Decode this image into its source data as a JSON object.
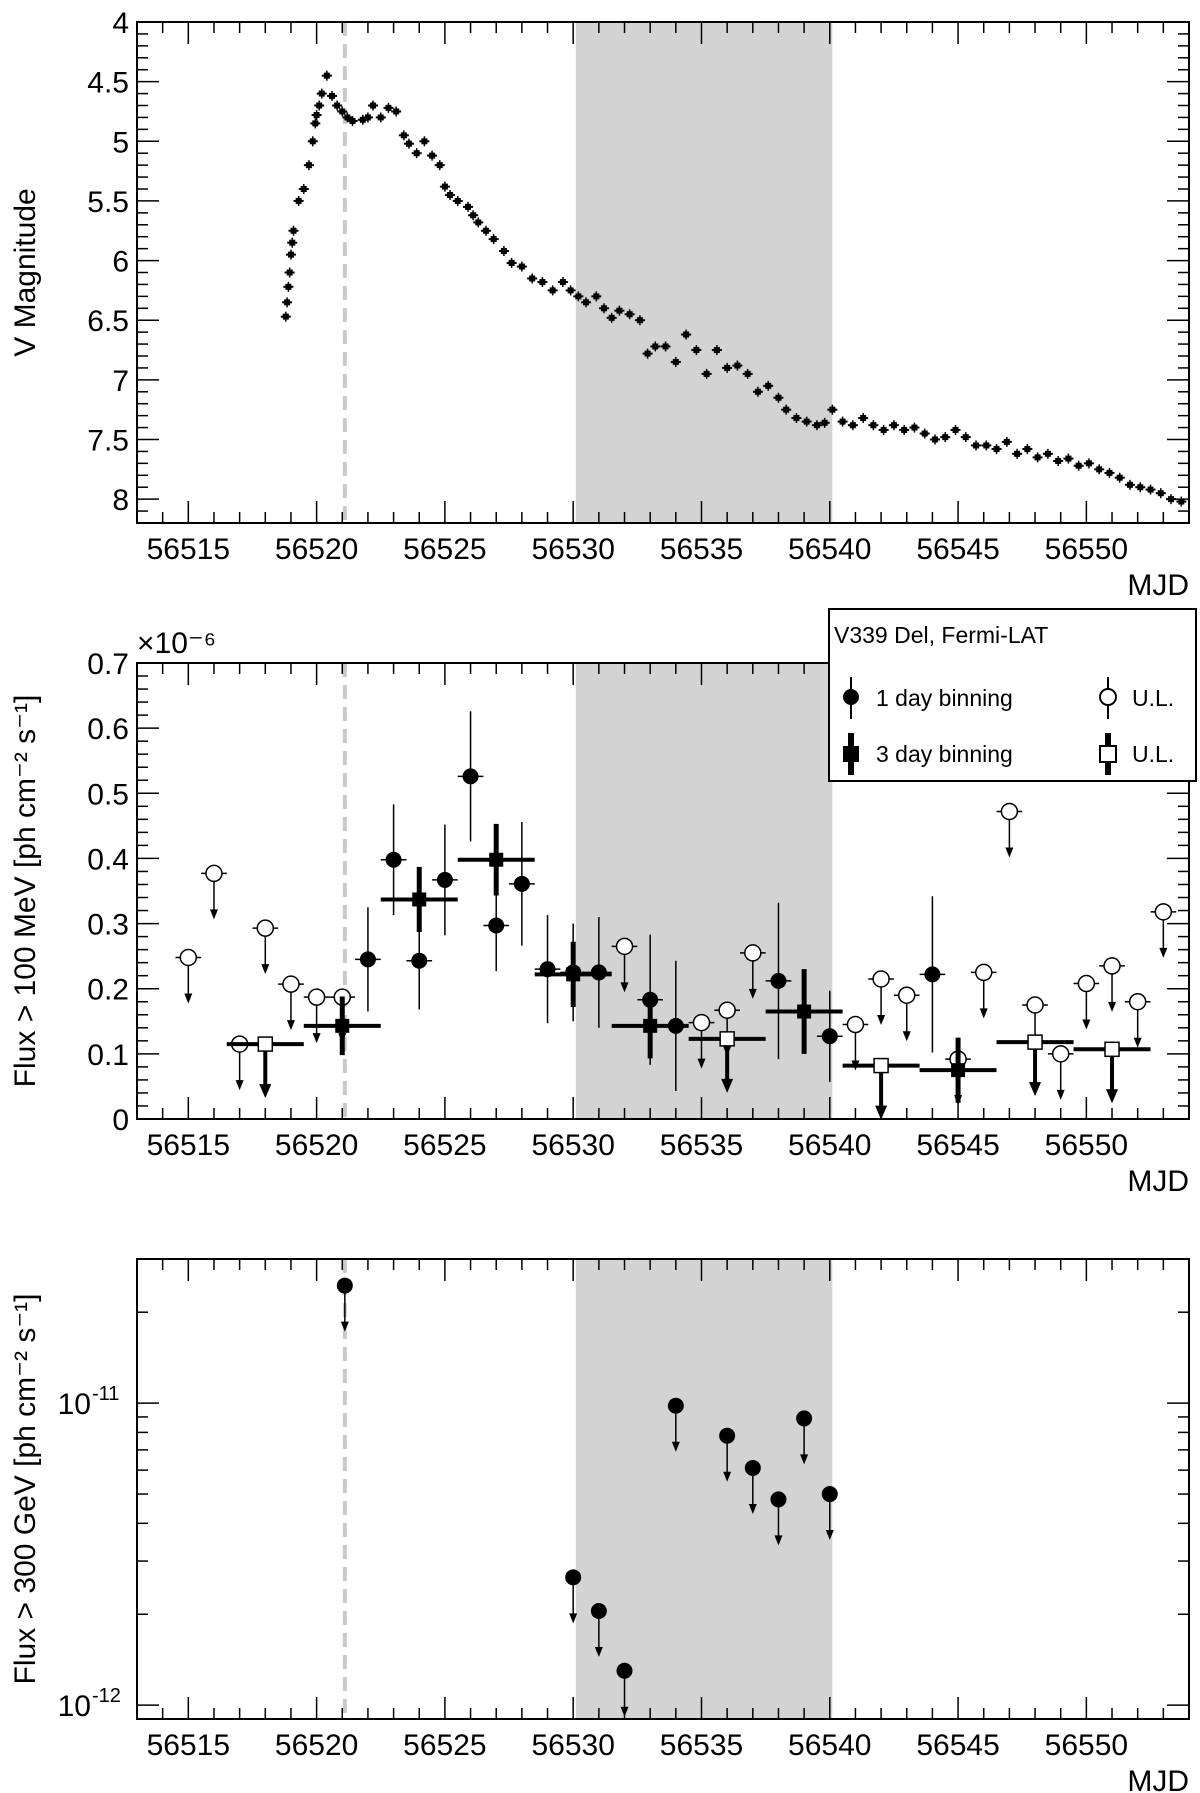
{
  "colors": {
    "shade": "#d3d3d3",
    "dashed_line": "#c9c9c9",
    "markers": "#000000"
  },
  "chart_data": [
    {
      "type": "scatter",
      "id": "panel-v-magnitude",
      "xlabel": "MJD",
      "ylabel": "V Magnitude",
      "xlim": [
        56513,
        56554
      ],
      "ylim": [
        8.2,
        4.0
      ],
      "y_inverted": true,
      "xticks": [
        "56515",
        "56520",
        "56525",
        "56530",
        "56535",
        "56540",
        "56545",
        "56550"
      ],
      "yticks": [
        "4",
        "4.5",
        "5",
        "5.5",
        "6",
        "6.5",
        "7",
        "7.5",
        "8"
      ],
      "shaded_region": [
        56530.1,
        56540.1
      ],
      "dashed_line_x": 56521.1,
      "series": [
        {
          "points": [
            [
              56518.8,
              6.47
            ],
            [
              56518.85,
              6.35
            ],
            [
              56518.9,
              6.22
            ],
            [
              56518.95,
              6.1
            ],
            [
              56519.0,
              5.95
            ],
            [
              56519.05,
              5.85
            ],
            [
              56519.1,
              5.75
            ],
            [
              56519.3,
              5.5
            ],
            [
              56519.5,
              5.4
            ],
            [
              56519.7,
              5.2
            ],
            [
              56519.85,
              5.0
            ],
            [
              56519.95,
              4.85
            ],
            [
              56520.0,
              4.78
            ],
            [
              56520.1,
              4.7
            ],
            [
              56520.2,
              4.6
            ],
            [
              56520.4,
              4.45
            ],
            [
              56520.6,
              4.62
            ],
            [
              56520.8,
              4.7
            ],
            [
              56521.0,
              4.75
            ],
            [
              56521.2,
              4.8
            ],
            [
              56521.4,
              4.83
            ],
            [
              56521.8,
              4.82
            ],
            [
              56522.0,
              4.8
            ],
            [
              56522.2,
              4.7
            ],
            [
              56522.5,
              4.8
            ],
            [
              56522.8,
              4.72
            ],
            [
              56523.1,
              4.75
            ],
            [
              56523.4,
              4.95
            ],
            [
              56523.6,
              5.02
            ],
            [
              56523.9,
              5.1
            ],
            [
              56524.2,
              5.0
            ],
            [
              56524.5,
              5.12
            ],
            [
              56524.8,
              5.2
            ],
            [
              56525.0,
              5.38
            ],
            [
              56525.2,
              5.45
            ],
            [
              56525.5,
              5.5
            ],
            [
              56525.9,
              5.55
            ],
            [
              56526.1,
              5.62
            ],
            [
              56526.3,
              5.68
            ],
            [
              56526.6,
              5.75
            ],
            [
              56526.9,
              5.82
            ],
            [
              56527.3,
              5.92
            ],
            [
              56527.6,
              6.02
            ],
            [
              56528.0,
              6.05
            ],
            [
              56528.4,
              6.15
            ],
            [
              56528.8,
              6.18
            ],
            [
              56529.2,
              6.25
            ],
            [
              56529.6,
              6.18
            ],
            [
              56529.9,
              6.25
            ],
            [
              56530.2,
              6.3
            ],
            [
              56530.5,
              6.35
            ],
            [
              56530.9,
              6.3
            ],
            [
              56531.2,
              6.4
            ],
            [
              56531.5,
              6.48
            ],
            [
              56531.8,
              6.42
            ],
            [
              56532.2,
              6.45
            ],
            [
              56532.6,
              6.5
            ],
            [
              56532.9,
              6.78
            ],
            [
              56533.2,
              6.72
            ],
            [
              56533.6,
              6.72
            ],
            [
              56534.0,
              6.85
            ],
            [
              56534.4,
              6.62
            ],
            [
              56534.8,
              6.75
            ],
            [
              56535.2,
              6.95
            ],
            [
              56535.6,
              6.75
            ],
            [
              56536.0,
              6.9
            ],
            [
              56536.4,
              6.88
            ],
            [
              56536.8,
              6.95
            ],
            [
              56537.2,
              7.1
            ],
            [
              56537.6,
              7.05
            ],
            [
              56538.0,
              7.15
            ],
            [
              56538.3,
              7.25
            ],
            [
              56538.7,
              7.32
            ],
            [
              56539.1,
              7.35
            ],
            [
              56539.5,
              7.38
            ],
            [
              56539.8,
              7.36
            ],
            [
              56540.1,
              7.25
            ],
            [
              56540.5,
              7.35
            ],
            [
              56540.9,
              7.38
            ],
            [
              56541.3,
              7.32
            ],
            [
              56541.7,
              7.38
            ],
            [
              56542.1,
              7.42
            ],
            [
              56542.5,
              7.38
            ],
            [
              56542.9,
              7.42
            ],
            [
              56543.3,
              7.4
            ],
            [
              56543.7,
              7.45
            ],
            [
              56544.1,
              7.5
            ],
            [
              56544.5,
              7.48
            ],
            [
              56544.9,
              7.42
            ],
            [
              56545.3,
              7.48
            ],
            [
              56545.7,
              7.55
            ],
            [
              56546.1,
              7.55
            ],
            [
              56546.5,
              7.58
            ],
            [
              56546.9,
              7.52
            ],
            [
              56547.3,
              7.62
            ],
            [
              56547.7,
              7.58
            ],
            [
              56548.1,
              7.65
            ],
            [
              56548.5,
              7.62
            ],
            [
              56548.9,
              7.68
            ],
            [
              56549.3,
              7.66
            ],
            [
              56549.7,
              7.72
            ],
            [
              56550.1,
              7.7
            ],
            [
              56550.5,
              7.75
            ],
            [
              56550.9,
              7.78
            ],
            [
              56551.3,
              7.82
            ],
            [
              56551.7,
              7.88
            ],
            [
              56552.1,
              7.9
            ],
            [
              56552.5,
              7.92
            ],
            [
              56552.9,
              7.95
            ],
            [
              56553.3,
              8.0
            ],
            [
              56553.7,
              8.02
            ]
          ]
        }
      ]
    },
    {
      "type": "scatter",
      "id": "panel-fermi-flux",
      "xlabel": "MJD",
      "ylabel": "Flux > 100 MeV [ph cm⁻² s⁻¹]",
      "y_exponent_label": "×10⁻⁶",
      "xlim": [
        56513,
        56554
      ],
      "ylim": [
        0,
        0.7
      ],
      "xticks": [
        "56515",
        "56520",
        "56525",
        "56530",
        "56535",
        "56540",
        "56545",
        "56550"
      ],
      "yticks": [
        "0",
        "0.1",
        "0.2",
        "0.3",
        "0.4",
        "0.5",
        "0.6",
        "0.7"
      ],
      "shaded_region": [
        56530.1,
        56540.1
      ],
      "dashed_line_x": 56521.1,
      "legend": {
        "title": "V339 Del, Fermi-LAT",
        "placement": "top-right",
        "entries": [
          "1 day binning",
          "U.L.",
          "3 day binning",
          "U.L."
        ]
      },
      "series": [
        {
          "name": "1 day binning",
          "points": [
            {
              "x": 56522,
              "y": 0.245,
              "err": 0.08
            },
            {
              "x": 56523,
              "y": 0.398,
              "err": 0.085
            },
            {
              "x": 56524,
              "y": 0.243,
              "err": 0.075
            },
            {
              "x": 56525,
              "y": 0.367,
              "err": 0.085
            },
            {
              "x": 56526,
              "y": 0.526,
              "err": 0.1
            },
            {
              "x": 56527,
              "y": 0.297,
              "err": 0.07
            },
            {
              "x": 56528,
              "y": 0.361,
              "err": 0.095
            },
            {
              "x": 56529,
              "y": 0.23,
              "err": 0.083
            },
            {
              "x": 56530,
              "y": 0.225,
              "err": 0.075
            },
            {
              "x": 56531,
              "y": 0.225,
              "err": 0.085
            },
            {
              "x": 56533,
              "y": 0.183,
              "err": 0.1
            },
            {
              "x": 56534,
              "y": 0.143,
              "err": 0.1
            },
            {
              "x": 56538,
              "y": 0.212,
              "err": 0.12
            },
            {
              "x": 56540,
              "y": 0.127,
              "err": 0.07
            },
            {
              "x": 56544,
              "y": 0.222,
              "err": 0.12
            }
          ]
        },
        {
          "name": "1 day binning U.L.",
          "points": [
            {
              "x": 56515,
              "y": 0.248
            },
            {
              "x": 56516,
              "y": 0.377
            },
            {
              "x": 56517,
              "y": 0.115
            },
            {
              "x": 56518,
              "y": 0.293
            },
            {
              "x": 56519,
              "y": 0.207
            },
            {
              "x": 56520,
              "y": 0.187
            },
            {
              "x": 56521,
              "y": 0.187
            },
            {
              "x": 56532,
              "y": 0.265
            },
            {
              "x": 56535,
              "y": 0.148
            },
            {
              "x": 56536,
              "y": 0.167
            },
            {
              "x": 56537,
              "y": 0.255
            },
            {
              "x": 56541,
              "y": 0.145
            },
            {
              "x": 56542,
              "y": 0.215
            },
            {
              "x": 56543,
              "y": 0.19
            },
            {
              "x": 56545,
              "y": 0.092
            },
            {
              "x": 56546,
              "y": 0.225
            },
            {
              "x": 56547,
              "y": 0.472
            },
            {
              "x": 56548,
              "y": 0.175
            },
            {
              "x": 56549,
              "y": 0.1
            },
            {
              "x": 56550,
              "y": 0.208
            },
            {
              "x": 56551,
              "y": 0.235
            },
            {
              "x": 56552,
              "y": 0.18
            },
            {
              "x": 56553,
              "y": 0.318
            }
          ]
        },
        {
          "name": "3 day binning",
          "points": [
            {
              "x": 56521,
              "y": 0.143,
              "err": 0.045
            },
            {
              "x": 56524,
              "y": 0.337,
              "err": 0.05
            },
            {
              "x": 56527,
              "y": 0.398,
              "err": 0.055
            },
            {
              "x": 56530,
              "y": 0.222,
              "err": 0.05
            },
            {
              "x": 56533,
              "y": 0.143,
              "err": 0.05
            },
            {
              "x": 56539,
              "y": 0.165,
              "err": 0.065
            },
            {
              "x": 56545,
              "y": 0.075,
              "err": 0.05
            }
          ]
        },
        {
          "name": "3 day binning U.L.",
          "points": [
            {
              "x": 56518,
              "y": 0.115
            },
            {
              "x": 56536,
              "y": 0.123
            },
            {
              "x": 56542,
              "y": 0.082
            },
            {
              "x": 56548,
              "y": 0.118
            },
            {
              "x": 56551,
              "y": 0.107
            }
          ]
        }
      ]
    },
    {
      "type": "scatter",
      "id": "panel-vhe-flux",
      "xlabel": "MJD",
      "ylabel": "Flux > 300 GeV [ph cm⁻² s⁻¹]",
      "y_scale": "log",
      "xlim": [
        56513,
        56554
      ],
      "ylim": [
        9e-13,
        3e-11
      ],
      "xticks": [
        "56515",
        "56520",
        "56525",
        "56530",
        "56535",
        "56540",
        "56545",
        "56550"
      ],
      "yticks": [
        {
          "label_base": "10",
          "label_exp": "-11",
          "value": 1e-11
        },
        {
          "label_base": "10",
          "label_exp": "-12",
          "value": 1e-12
        }
      ],
      "shaded_region": [
        56530.1,
        56540.1
      ],
      "dashed_line_x": 56521.1,
      "series": [
        {
          "points": [
            {
              "x": 56521.1,
              "y": 2.45e-11
            },
            {
              "x": 56530,
              "y": 2.65e-12
            },
            {
              "x": 56531,
              "y": 2.05e-12
            },
            {
              "x": 56532,
              "y": 1.3e-12
            },
            {
              "x": 56534,
              "y": 9.8e-12
            },
            {
              "x": 56536,
              "y": 7.8e-12
            },
            {
              "x": 56537,
              "y": 6.1e-12
            },
            {
              "x": 56538,
              "y": 4.8e-12
            },
            {
              "x": 56539,
              "y": 8.9e-12
            },
            {
              "x": 56540,
              "y": 5e-12
            }
          ]
        }
      ]
    }
  ]
}
